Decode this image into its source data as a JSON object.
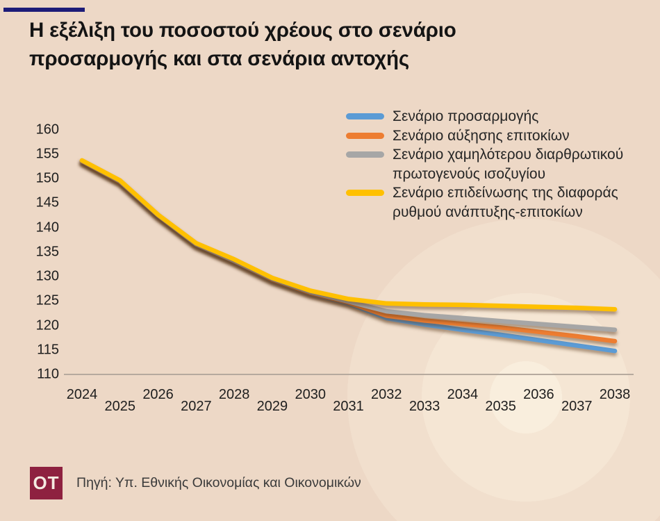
{
  "page": {
    "title": "Η εξέλιξη του ποσοστού χρέους στο σενάριο προσαρμογής και στα σενάρια αντοχής",
    "source": "Πηγή: Υπ. Εθνικής Οικονομίας και Οικονομικών",
    "logo_text": "OT"
  },
  "colors": {
    "background": "#edd8c6",
    "accent_bar": "#1d1c78",
    "logo_maroon": "#8e2140",
    "axis_line": "#b6aa9e",
    "blue": "#5b9bd5",
    "orange": "#ed7d31",
    "gray": "#a6a6a6",
    "yellow": "#ffc000"
  },
  "chart_data": {
    "type": "line",
    "categories": [
      2024,
      2025,
      2026,
      2027,
      2028,
      2029,
      2030,
      2031,
      2032,
      2033,
      2034,
      2035,
      2036,
      2037,
      2038
    ],
    "series": [
      {
        "name": "Σενάριο προσαρμογής",
        "color": "#5b9bd5",
        "values": [
          153.5,
          149.3,
          142.3,
          136.4,
          133.0,
          129.2,
          126.5,
          124.5,
          121.5,
          120.2,
          119.1,
          118.1,
          117.0,
          115.9,
          114.8
        ]
      },
      {
        "name": "Σενάριο αύξησης επιτοκίων",
        "color": "#ed7d31",
        "values": [
          153.5,
          149.3,
          142.4,
          136.5,
          133.1,
          129.3,
          126.6,
          124.7,
          122.0,
          121.0,
          120.3,
          119.6,
          118.7,
          117.8,
          116.8
        ]
      },
      {
        "name": "Σενάριο χαμηλότερου διαρθρωτικού πρωτογενούς ισοζυγίου",
        "color": "#a6a6a6",
        "values": [
          153.6,
          149.4,
          142.5,
          136.6,
          133.2,
          129.5,
          126.8,
          124.9,
          122.9,
          122.1,
          121.5,
          120.9,
          120.3,
          119.7,
          119.1
        ]
      },
      {
        "name": "Σενάριο επιδείνωσης της διαφοράς ρυθμού ανάπτυξης-επιτοκίων",
        "color": "#ffc000",
        "values": [
          153.7,
          149.6,
          142.6,
          136.8,
          133.5,
          129.7,
          127.1,
          125.4,
          124.5,
          124.3,
          124.2,
          124.0,
          123.8,
          123.6,
          123.3
        ]
      }
    ],
    "y_ticks": [
      160,
      155,
      150,
      145,
      140,
      135,
      130,
      125,
      120,
      115,
      110
    ],
    "ylim": [
      110,
      160
    ],
    "grid": false,
    "legend_position": "top-right",
    "xlabel": "",
    "ylabel": ""
  }
}
